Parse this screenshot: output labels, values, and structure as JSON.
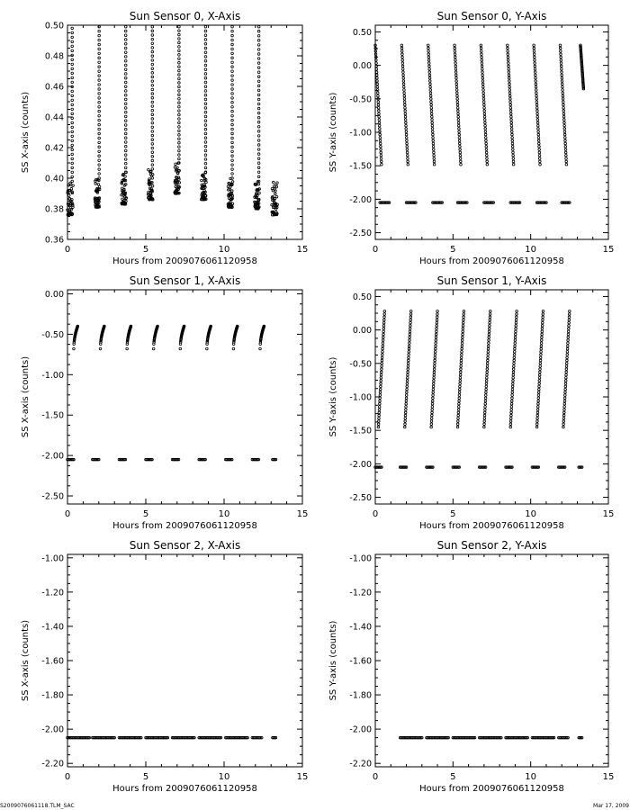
{
  "footer": {
    "filename": "S2009076061118.TLM_SAC",
    "date": "Mar 17, 2009"
  },
  "chart_data": [
    {
      "type": "scatter",
      "title": "Sun Sensor 0, X-Axis",
      "xlabel": "Hours from 2009076061120958",
      "ylabel": "SS X-axis (counts)",
      "xlim": [
        0,
        15
      ],
      "ylim": [
        0.36,
        0.5
      ],
      "xticks": [
        0,
        5,
        10,
        15
      ],
      "yticks": [
        0.36,
        0.38,
        0.4,
        0.42,
        0.44,
        0.46,
        0.48,
        0.5
      ],
      "ytick_labels": [
        "0.36",
        "0.38",
        "0.40",
        "0.42",
        "0.44",
        "0.46",
        "0.48",
        "0.50"
      ],
      "clusters": [
        {
          "x_start": 0.0,
          "x_end": 0.35,
          "y_low": 0.376,
          "y_high": 0.398,
          "spike_x": 0.3,
          "spike_top": 0.498
        },
        {
          "x_start": 1.75,
          "x_end": 2.05,
          "y_low": 0.381,
          "y_high": 0.4,
          "spike_x": 2.02,
          "spike_top": 0.499
        },
        {
          "x_start": 3.45,
          "x_end": 3.75,
          "y_low": 0.383,
          "y_high": 0.404,
          "spike_x": 3.72,
          "spike_top": 0.499
        },
        {
          "x_start": 5.15,
          "x_end": 5.45,
          "y_low": 0.386,
          "y_high": 0.406,
          "spike_x": 5.42,
          "spike_top": 0.499
        },
        {
          "x_start": 6.85,
          "x_end": 7.15,
          "y_low": 0.39,
          "y_high": 0.41,
          "spike_x": 7.12,
          "spike_top": 0.499
        },
        {
          "x_start": 8.55,
          "x_end": 8.85,
          "y_low": 0.386,
          "y_high": 0.404,
          "spike_x": 8.82,
          "spike_top": 0.499
        },
        {
          "x_start": 10.25,
          "x_end": 10.55,
          "y_low": 0.381,
          "y_high": 0.4,
          "spike_x": 10.52,
          "spike_top": 0.499
        },
        {
          "x_start": 11.95,
          "x_end": 12.25,
          "y_low": 0.38,
          "y_high": 0.398,
          "spike_x": 12.22,
          "spike_top": 0.499
        },
        {
          "x_start": 13.05,
          "x_end": 13.4,
          "y_low": 0.376,
          "y_high": 0.398,
          "spike_x": null,
          "spike_top": null
        }
      ]
    },
    {
      "type": "scatter",
      "title": "Sun Sensor 0, Y-Axis",
      "xlabel": "Hours from 2009076061120958",
      "ylabel": "SS Y-axis (counts)",
      "xlim": [
        0,
        15
      ],
      "ylim": [
        -2.6,
        0.6
      ],
      "xticks": [
        0,
        5,
        10,
        15
      ],
      "yticks": [
        -2.5,
        -2.0,
        -1.5,
        -1.0,
        -0.5,
        0.0,
        0.5
      ],
      "ytick_labels": [
        "-2.50",
        "-2.00",
        "-1.50",
        "-1.00",
        "-0.50",
        "0.00",
        "0.50"
      ],
      "sweeps": [
        {
          "x_start": 0.0,
          "x_end": 0.4,
          "y_start": 0.3,
          "y_end": -1.48
        },
        {
          "x_start": 1.7,
          "x_end": 2.1,
          "y_start": 0.3,
          "y_end": -1.48
        },
        {
          "x_start": 3.4,
          "x_end": 3.8,
          "y_start": 0.3,
          "y_end": -1.48
        },
        {
          "x_start": 5.1,
          "x_end": 5.5,
          "y_start": 0.3,
          "y_end": -1.48
        },
        {
          "x_start": 6.8,
          "x_end": 7.2,
          "y_start": 0.3,
          "y_end": -1.48
        },
        {
          "x_start": 8.5,
          "x_end": 8.9,
          "y_start": 0.3,
          "y_end": -1.48
        },
        {
          "x_start": 10.2,
          "x_end": 10.6,
          "y_start": 0.3,
          "y_end": -1.48
        },
        {
          "x_start": 11.9,
          "x_end": 12.3,
          "y_start": 0.3,
          "y_end": -1.48
        },
        {
          "x_start": 13.2,
          "x_end": 13.4,
          "y_start": 0.3,
          "y_end": -0.35
        }
      ],
      "baseline": {
        "y": -2.05,
        "segments": [
          [
            0.3,
            0.9
          ],
          [
            2.0,
            2.6
          ],
          [
            3.7,
            4.3
          ],
          [
            5.3,
            5.9
          ],
          [
            7.0,
            7.6
          ],
          [
            8.7,
            9.3
          ],
          [
            10.4,
            11.0
          ],
          [
            12.0,
            12.5
          ]
        ]
      }
    },
    {
      "type": "scatter",
      "title": "Sun Sensor 1, X-Axis",
      "xlabel": "Hours from 2009076061120958",
      "ylabel": "SS X-axis (counts)",
      "xlim": [
        0,
        15
      ],
      "ylim": [
        -2.6,
        0.05
      ],
      "xticks": [
        0,
        5,
        10,
        15
      ],
      "yticks": [
        -2.5,
        -2.0,
        -1.5,
        -1.0,
        -0.5,
        0.0
      ],
      "ytick_labels": [
        "-2.50",
        "-2.00",
        "-1.50",
        "-1.00",
        "-0.50",
        "0.00"
      ],
      "hooks": [
        {
          "x_start": 0.4,
          "x_end": 0.65,
          "y_start": -0.68,
          "y_end": -0.4
        },
        {
          "x_start": 2.1,
          "x_end": 2.35,
          "y_start": -0.68,
          "y_end": -0.4
        },
        {
          "x_start": 3.8,
          "x_end": 4.05,
          "y_start": -0.68,
          "y_end": -0.4
        },
        {
          "x_start": 5.5,
          "x_end": 5.75,
          "y_start": -0.68,
          "y_end": -0.4
        },
        {
          "x_start": 7.2,
          "x_end": 7.45,
          "y_start": -0.68,
          "y_end": -0.4
        },
        {
          "x_start": 8.9,
          "x_end": 9.15,
          "y_start": -0.68,
          "y_end": -0.4
        },
        {
          "x_start": 10.6,
          "x_end": 10.85,
          "y_start": -0.68,
          "y_end": -0.4
        },
        {
          "x_start": 12.3,
          "x_end": 12.55,
          "y_start": -0.68,
          "y_end": -0.4
        }
      ],
      "baseline": {
        "y": -2.05,
        "segments": [
          [
            0.0,
            0.4
          ],
          [
            1.6,
            2.0
          ],
          [
            3.3,
            3.7
          ],
          [
            5.0,
            5.4
          ],
          [
            6.7,
            7.1
          ],
          [
            8.4,
            8.8
          ],
          [
            10.1,
            10.5
          ],
          [
            11.8,
            12.2
          ],
          [
            13.1,
            13.3
          ]
        ]
      }
    },
    {
      "type": "scatter",
      "title": "Sun Sensor 1, Y-Axis",
      "xlabel": "Hours from 2009076061120958",
      "ylabel": "SS Y-axis (counts)",
      "xlim": [
        0,
        15
      ],
      "ylim": [
        -2.6,
        0.6
      ],
      "xticks": [
        0,
        5,
        10,
        15
      ],
      "yticks": [
        -2.5,
        -2.0,
        -1.5,
        -1.0,
        -0.5,
        0.0,
        0.5
      ],
      "ytick_labels": [
        "-2.50",
        "-2.00",
        "-1.50",
        "-1.00",
        "-0.50",
        "0.00",
        "0.50"
      ],
      "sweeps": [
        {
          "x_start": 0.2,
          "x_end": 0.6,
          "y_start": -1.45,
          "y_end": 0.28
        },
        {
          "x_start": 1.9,
          "x_end": 2.3,
          "y_start": -1.45,
          "y_end": 0.28
        },
        {
          "x_start": 3.6,
          "x_end": 4.0,
          "y_start": -1.45,
          "y_end": 0.28
        },
        {
          "x_start": 5.3,
          "x_end": 5.7,
          "y_start": -1.45,
          "y_end": 0.28
        },
        {
          "x_start": 7.0,
          "x_end": 7.4,
          "y_start": -1.45,
          "y_end": 0.28
        },
        {
          "x_start": 8.7,
          "x_end": 9.1,
          "y_start": -1.45,
          "y_end": 0.28
        },
        {
          "x_start": 10.4,
          "x_end": 10.8,
          "y_start": -1.45,
          "y_end": 0.28
        },
        {
          "x_start": 12.1,
          "x_end": 12.5,
          "y_start": -1.45,
          "y_end": 0.28
        }
      ],
      "baseline": {
        "y": -2.05,
        "segments": [
          [
            0.0,
            0.4
          ],
          [
            1.6,
            2.0
          ],
          [
            3.3,
            3.7
          ],
          [
            5.0,
            5.4
          ],
          [
            6.7,
            7.1
          ],
          [
            8.4,
            8.8
          ],
          [
            10.1,
            10.5
          ],
          [
            11.8,
            12.2
          ],
          [
            13.1,
            13.3
          ]
        ]
      }
    },
    {
      "type": "scatter",
      "title": "Sun Sensor 2, X-Axis",
      "xlabel": "Hours from 2009076061120958",
      "ylabel": "SS X-axis (counts)",
      "xlim": [
        0,
        15
      ],
      "ylim": [
        -2.22,
        -0.98
      ],
      "xticks": [
        0,
        5,
        10,
        15
      ],
      "yticks": [
        -2.2,
        -2.0,
        -1.8,
        -1.6,
        -1.4,
        -1.2,
        -1.0
      ],
      "ytick_labels": [
        "-2.20",
        "-2.00",
        "-1.80",
        "-1.60",
        "-1.40",
        "-1.20",
        "-1.00"
      ],
      "baseline": {
        "y": -2.05,
        "segments": [
          [
            0.0,
            1.4
          ],
          [
            1.6,
            3.0
          ],
          [
            3.3,
            4.7
          ],
          [
            5.0,
            6.4
          ],
          [
            6.7,
            8.1
          ],
          [
            8.4,
            9.8
          ],
          [
            10.1,
            11.5
          ],
          [
            11.8,
            12.4
          ],
          [
            13.1,
            13.3
          ]
        ]
      }
    },
    {
      "type": "scatter",
      "title": "Sun Sensor 2, Y-Axis",
      "xlabel": "Hours from 2009076061120958",
      "ylabel": "SS Y-axis (counts)",
      "xlim": [
        0,
        15
      ],
      "ylim": [
        -2.22,
        -0.98
      ],
      "xticks": [
        0,
        5,
        10,
        15
      ],
      "yticks": [
        -2.2,
        -2.0,
        -1.8,
        -1.6,
        -1.4,
        -1.2,
        -1.0
      ],
      "ytick_labels": [
        "-2.20",
        "-2.00",
        "-1.80",
        "-1.60",
        "-1.40",
        "-1.20",
        "-1.00"
      ],
      "baseline": {
        "y": -2.05,
        "segments": [
          [
            1.6,
            3.0
          ],
          [
            3.3,
            4.7
          ],
          [
            5.0,
            6.4
          ],
          [
            6.7,
            8.1
          ],
          [
            8.4,
            9.8
          ],
          [
            10.1,
            11.5
          ],
          [
            11.8,
            12.4
          ],
          [
            13.1,
            13.3
          ]
        ]
      }
    }
  ]
}
